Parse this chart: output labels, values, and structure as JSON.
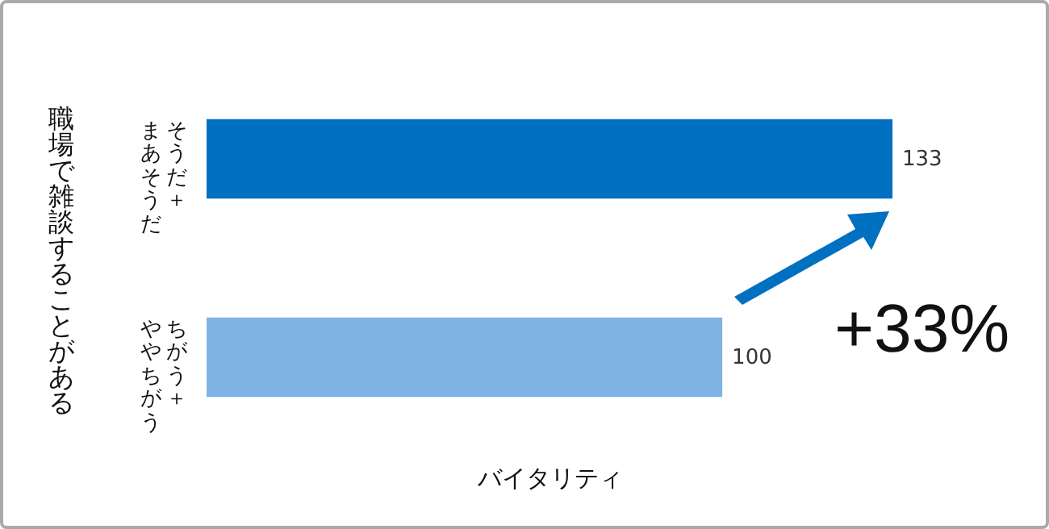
{
  "chart_data": {
    "type": "bar",
    "orientation": "horizontal",
    "xlabel": "バイタリティ",
    "ylabel": "職場で雑談することがある",
    "categories": [
      "そうだ＋まあそうだ",
      "ちがう＋ややちがう"
    ],
    "values": [
      133,
      100
    ],
    "colors": [
      "#0070c0",
      "#7fb2e5"
    ],
    "data_labels": true,
    "legend": false,
    "grid": false,
    "annotations": [
      "+33%"
    ]
  }
}
